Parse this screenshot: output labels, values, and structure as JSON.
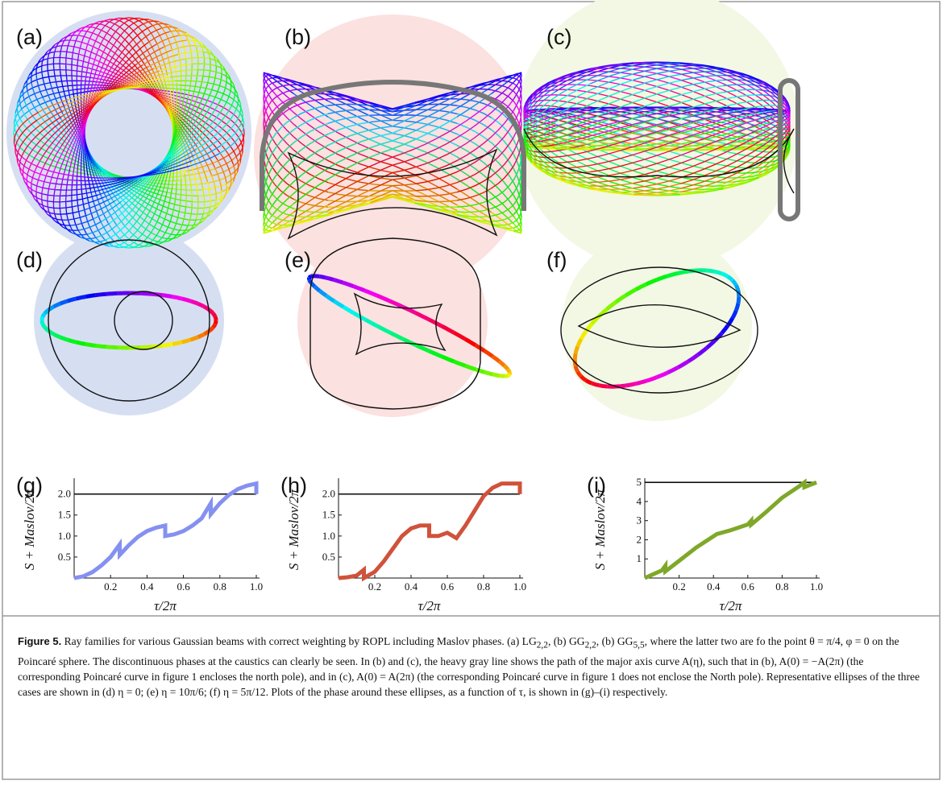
{
  "panel_labels": [
    "(a)",
    "(b)",
    "(c)",
    "(d)",
    "(e)",
    "(f)"
  ],
  "chart_data": [
    {
      "type": "line",
      "title": "(g)",
      "x_label": "τ/2π",
      "y_label": "S + Maslov/2π",
      "x": [
        0,
        0.05,
        0.1,
        0.15,
        0.2,
        0.25,
        0.25,
        0.3,
        0.35,
        0.4,
        0.45,
        0.5,
        0.5,
        0.55,
        0.6,
        0.65,
        0.7,
        0.75,
        0.75,
        0.8,
        0.85,
        0.9,
        0.95,
        1,
        1
      ],
      "series": [
        {
          "color": "#8591f0",
          "values": [
            0,
            0.04,
            0.14,
            0.3,
            0.5,
            0.8,
            0.55,
            0.78,
            0.98,
            1.12,
            1.2,
            1.25,
            1.0,
            1.04,
            1.12,
            1.25,
            1.42,
            1.78,
            1.52,
            1.78,
            1.98,
            2.12,
            2.2,
            2.25,
            2.0
          ]
        }
      ],
      "xlim": [
        0,
        1
      ],
      "ylim": [
        0,
        2.3
      ],
      "xticks": [
        0.2,
        0.4,
        0.6,
        0.8,
        {
          "value": 1,
          "label": "1.0"
        }
      ],
      "yticks": [
        0.5,
        {
          "value": 1,
          "label": "1.0"
        },
        1.5,
        {
          "value": 2,
          "label": "2.0"
        }
      ],
      "reference_line": 2
    },
    {
      "type": "line",
      "title": "(h)",
      "x_label": "τ/2π",
      "y_label": "S + Maslov/2π",
      "x": [
        0,
        0.05,
        0.1,
        0.14,
        0.14,
        0.2,
        0.25,
        0.3,
        0.35,
        0.4,
        0.45,
        0.5,
        0.5,
        0.55,
        0.6,
        0.65,
        0.7,
        0.75,
        0.8,
        0.85,
        0.9,
        1,
        1
      ],
      "series": [
        {
          "color": "#d0523a",
          "values": [
            0,
            0.02,
            0.06,
            0.2,
            0,
            0.15,
            0.4,
            0.7,
            1.0,
            1.18,
            1.25,
            1.25,
            1.0,
            1.0,
            1.08,
            0.95,
            1.25,
            1.6,
            1.95,
            2.15,
            2.25,
            2.25,
            2.0
          ]
        }
      ],
      "xlim": [
        0,
        1
      ],
      "ylim": [
        0,
        2.3
      ],
      "xticks": [
        0.2,
        0.4,
        0.6,
        0.8,
        {
          "value": 1,
          "label": "1.0"
        }
      ],
      "yticks": [
        0.5,
        {
          "value": 1,
          "label": "1.0"
        },
        1.5,
        {
          "value": 2,
          "label": "2.0"
        }
      ],
      "reference_line": 2
    },
    {
      "type": "line",
      "title": "(i)",
      "x_label": "τ/2π",
      "y_label": "S + Maslov/2π",
      "x": [
        0,
        0.05,
        0.1,
        0.12,
        0.12,
        0.2,
        0.3,
        0.42,
        0.5,
        0.6,
        0.62,
        0.62,
        0.7,
        0.8,
        0.9,
        0.93,
        0.93,
        1
      ],
      "series": [
        {
          "color": "#7fa829",
          "values": [
            0,
            0.2,
            0.4,
            0.65,
            0.35,
            0.9,
            1.6,
            2.3,
            2.5,
            2.8,
            3.0,
            2.8,
            3.4,
            4.2,
            4.8,
            5.0,
            4.75,
            5.0
          ]
        }
      ],
      "xlim": [
        0,
        1
      ],
      "ylim": [
        0,
        5.05
      ],
      "xticks": [
        0.2,
        0.4,
        0.6,
        0.8,
        {
          "value": 1,
          "label": "1.0"
        }
      ],
      "yticks": [
        1,
        2,
        3,
        4,
        5
      ],
      "reference_line": 5
    }
  ],
  "caption": {
    "label": "Figure 5.",
    "parts": [
      " Ray families for various Gaussian beams with correct weighting by ROPL including Maslov phases. (a) LG",
      "2,2",
      ", (b) GG",
      "2,2",
      ", (b) GG",
      "5,5",
      ", where the latter two are fo the point θ = π/4, φ = 0 on the Poincaré sphere. The discontinuous phases at the caustics can clearly be seen. In (b) and (c), the heavy gray line shows the path of the major axis curve A(η), such that in (b), A(0) = −A(2π) (the corresponding Poincaré curve in figure 1 encloses the north pole), and in (c), A(0) = A(2π) (the corresponding Poincaré curve in figure 1 does not enclose the North pole). Representative ellipses of the three cases are shown in (d) η = 0; (e) η = 10π/6; (f) η = 5π/12. Plots of the phase around these ellipses, as a function of τ, is shown in (g)–(i) respectively."
    ]
  }
}
